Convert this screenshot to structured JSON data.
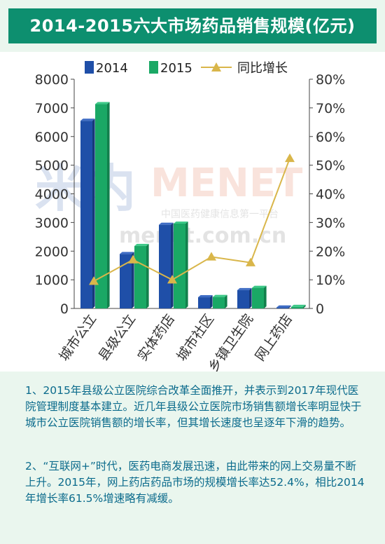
{
  "title": "2014-2015六大市场药品销售规模(亿元)",
  "legend": {
    "items": [
      {
        "label": "2014",
        "color": "#1f4fa8",
        "kind": "bar"
      },
      {
        "label": "2015",
        "color": "#1aa865",
        "kind": "bar"
      },
      {
        "label": "同比增长",
        "color": "#d9b64a",
        "kind": "line"
      }
    ]
  },
  "chart_data": {
    "type": "bar",
    "categories": [
      "城市公立",
      "县级公立",
      "实体药店",
      "城市社区",
      "乡镇卫生院",
      "网上药店"
    ],
    "series": [
      {
        "name": "2014",
        "type": "bar",
        "axis": "left",
        "color": "#1f4fa8",
        "values": [
          6550,
          1900,
          2920,
          390,
          640,
          35
        ]
      },
      {
        "name": "2015",
        "type": "bar",
        "axis": "left",
        "color": "#1aa865",
        "values": [
          7130,
          2180,
          2960,
          400,
          720,
          55
        ]
      },
      {
        "name": "同比增长",
        "type": "line",
        "axis": "right",
        "color": "#d9b64a",
        "values": [
          9.5,
          17,
          10,
          18,
          16,
          52.4
        ]
      }
    ],
    "y_left": {
      "ticks": [
        "0",
        "1000",
        "2000",
        "3000",
        "4000",
        "5000",
        "6000",
        "7000",
        "8000"
      ],
      "ylim": [
        0,
        8000
      ]
    },
    "y_right": {
      "ticks": [
        "0",
        "10%",
        "20%",
        "30%",
        "40%",
        "50%",
        "60%",
        "70%",
        "80%"
      ],
      "ylim": [
        0,
        80
      ]
    },
    "grid": false,
    "legend_position": "top"
  },
  "watermark": {
    "logo": "米内",
    "brand": "MENET",
    "tagline": "中国医药健康信息第一平台",
    "url": "menet.com.cn"
  },
  "notes": [
    "1、2015年县级公立医院综合改革全面推开，并表示到2017年现代医院管理制度基本建立。近几年县级公立医院市场销售额增长率明显快于城市公立医院销售额的增长率，但其增长速度也呈逐年下滑的趋势。",
    "2、“互联网+”时代，医药电商发展迅速，由此带来的网上交易量不断上升。2015年，网上药店药品市场的规模增长率达52.4%，相比2014年增长率61.5%增速略有减缓。"
  ]
}
